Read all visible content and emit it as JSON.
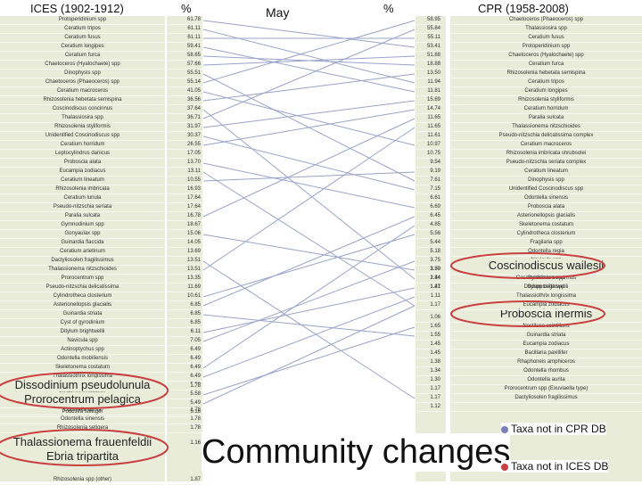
{
  "chart_data": {
    "type": "table",
    "headers": {
      "left_period": "ICES (1902-1912)",
      "left_pct": "%",
      "month": "May",
      "right_pct": "%",
      "right_period": "CPR (1958-2008)"
    },
    "ices": [
      {
        "taxon": "Protoperidinium spp",
        "pct": "61.78"
      },
      {
        "taxon": "Ceratium tripos",
        "pct": "61.11"
      },
      {
        "taxon": "Ceratium fusus",
        "pct": "61.11"
      },
      {
        "taxon": "Ceratium longipes",
        "pct": "59.41"
      },
      {
        "taxon": "Ceratium furca",
        "pct": "58.65"
      },
      {
        "taxon": "Chaetoceros (Hyalochaete) spp",
        "pct": "57.66"
      },
      {
        "taxon": "Dinophysis spp",
        "pct": "55.51"
      },
      {
        "taxon": "Chaetoceros (Phaeoceros) spp",
        "pct": "55.14"
      },
      {
        "taxon": "Ceratium macroceros",
        "pct": "41.05"
      },
      {
        "taxon": "Rhizosolenia hebetata semispina",
        "pct": "36.56"
      },
      {
        "taxon": "Coscinodiscus concinnus",
        "pct": "37.64"
      },
      {
        "taxon": "Thalassiosira spp",
        "pct": "36.71"
      },
      {
        "taxon": "Rhizosolenia styliformis",
        "pct": "31.97"
      },
      {
        "taxon": "Unidentified Coscinodiscus spp",
        "pct": "30.37"
      },
      {
        "taxon": "Ceratium horridum",
        "pct": "26.55"
      },
      {
        "taxon": "Leptocylindrus danicus",
        "pct": "17.05"
      },
      {
        "taxon": "Proboscia alata",
        "pct": "13.70"
      },
      {
        "taxon": "Eucampia zodiacus",
        "pct": "13.11"
      },
      {
        "taxon": "Ceratium lineatum",
        "pct": "10.55"
      },
      {
        "taxon": "Rhizosolenia imbricata",
        "pct": "16.93"
      },
      {
        "taxon": "Ceratium lunula",
        "pct": "17.64"
      },
      {
        "taxon": "Pseudo-nitzschia seriata",
        "pct": "17.64"
      },
      {
        "taxon": "Paralia sulcata",
        "pct": "16.78"
      },
      {
        "taxon": "Gymnodinium spp",
        "pct": "18.67"
      },
      {
        "taxon": "Gonyaulax spp",
        "pct": "15.06"
      },
      {
        "taxon": "Guinardia flaccida",
        "pct": "14.05"
      },
      {
        "taxon": "Ceratium arietinum",
        "pct": "13.69"
      },
      {
        "taxon": "Dactyliosolen fragilissimus",
        "pct": "13.51"
      },
      {
        "taxon": "Thalassionema nitzschioides",
        "pct": "13.51"
      },
      {
        "taxon": "Prorocentrum spp",
        "pct": "13.35"
      },
      {
        "taxon": "Pseudo-nitzschia delicatissima",
        "pct": "11.69"
      },
      {
        "taxon": "Cylindrotheca closterium",
        "pct": "10.61"
      },
      {
        "taxon": "Asterionellopsis glacialis",
        "pct": "6.85"
      },
      {
        "taxon": "Guinardia striata",
        "pct": "6.85"
      },
      {
        "taxon": "Cyst of gyrodinium",
        "pct": "6.85"
      },
      {
        "taxon": "Ditylum brightwellii",
        "pct": "6.11"
      },
      {
        "taxon": "Navicula spp",
        "pct": "7.05"
      },
      {
        "taxon": "Actinoptychus spp",
        "pct": "6.49"
      },
      {
        "taxon": "Odontella mobiliensis",
        "pct": "6.49"
      },
      {
        "taxon": "Skeletonema costatum",
        "pct": "6.49"
      },
      {
        "taxon": "Thalassiothrix longissima",
        "pct": "6.49"
      },
      {
        "taxon": "Gibrodinium spp",
        "pct": "5.58"
      },
      {
        "taxon": "Noctiluca scintillans",
        "pct": "5.58"
      },
      {
        "taxon": "Eucampia zodiacus",
        "pct": "5.49"
      },
      {
        "taxon": "Podosira stelliger",
        "pct": "5.16"
      }
    ],
    "ices_extra": [
      {
        "taxon": "Odontella aurita",
        "pct": "1.78"
      },
      {
        "taxon": "Odontella sinensis",
        "pct": "1.78"
      },
      {
        "taxon": "Rhizosolenia setigera",
        "pct": "1.78"
      },
      {
        "taxon": "Rhizosolenia spp (other)",
        "pct": "1.87"
      }
    ],
    "ices_highlight": [
      {
        "taxon": "Dissodinium pseudolunula",
        "pct": "1.78"
      },
      {
        "taxon": "Prorocentrum pelagica",
        "pct": ""
      },
      {
        "taxon": "Thalassionema frauenfeldii",
        "pct": "1.16"
      },
      {
        "taxon": "Ebria tripartita",
        "pct": ""
      }
    ],
    "cpr_pct": [
      "58.95",
      "55.84",
      "55.11",
      "53.41",
      "51.88",
      "18.88",
      "13.50",
      "11.94",
      "11.81",
      "15.89",
      "14.74",
      "11.65",
      "11.65",
      "11.61",
      "10.97",
      "10.75",
      "9.54",
      "9.19",
      "7.61",
      "7.15",
      "6.61",
      "6.69",
      "6.45",
      "4.85",
      "5.56",
      "5.44",
      "5.18",
      "3.75",
      "3.70",
      "2.44",
      "1.41"
    ],
    "cpr": [
      "Chaetoceros (Phaeoceros) spp",
      "Thalassiosira spp",
      "Ceratium fusus",
      "Protoperidinium spp",
      "Chaetoceros (Hyalochaete) spp",
      "Ceratium furca",
      "Rhizosolenia hebetata semispina",
      "Ceratium tripos",
      "Ceratium longipes",
      "Rhizosolenia styliformis",
      "Ceratium horridum",
      "Paralia sulcata",
      "Thalassionema nitzschioides",
      "Pseudo-nitzschia delicatissima complex",
      "Ceratium macroceros",
      "Rhizosolenia imbricata shrubsolei",
      "Pseudo-nitzschia seriata complex",
      "Ceratium lineatum",
      "Dinophysis spp",
      "Unidentified Coscinodiscus spp",
      "Odontella sinensis",
      "Proboscia alata",
      "Asterionellopsis glacialis",
      "Skeletonema costatum",
      "Cylindrotheca closterium",
      "Fragilaria spp",
      "Odontella regia",
      "Navicula spp",
      "Gonyaulax spp",
      "Coscinodiscus concinnus",
      "Ditylum brightwellii"
    ],
    "cpr_mid_pct": [
      "1.59",
      "1.34",
      "1.27",
      "1.11",
      "1.17"
    ],
    "cpr_mid": [
      "",
      "Gyrodinium spp",
      "Scrippsiella spp",
      "Thalassiothrix longissima",
      "Eucampia zodiacus"
    ],
    "cpr_low_pct": [
      "1.06",
      "1.65",
      "1.55",
      "1.45",
      "1.45",
      "1.38",
      "1.34",
      "1.30",
      "1.17",
      "1.17",
      "1.12"
    ],
    "cpr_low": [
      "",
      "Noctiluca scintillans",
      "Guinardia striata",
      "Eucampia zodiacus",
      "Bacillaria paxillifer",
      "Rhaphoneis amphiceros",
      "Odontella rhombus",
      "Odontella aurita",
      "Prorocentrum spp (Exuviaella type)",
      "Dactyliosolen fragilissimus",
      ""
    ],
    "cpr_highlight": [
      {
        "taxon": "Coscinodiscus wailesii"
      },
      {
        "taxon": "Proboscia inermis"
      }
    ],
    "legend": {
      "ices_only": "Taxa not in CPR DB",
      "cpr_only": "Taxa not in ICES DB",
      "ices_only_color": "#7a7fb8",
      "cpr_only_color": "#c84040"
    },
    "caption": "Community changes",
    "line_color": "#9aa3c8"
  }
}
